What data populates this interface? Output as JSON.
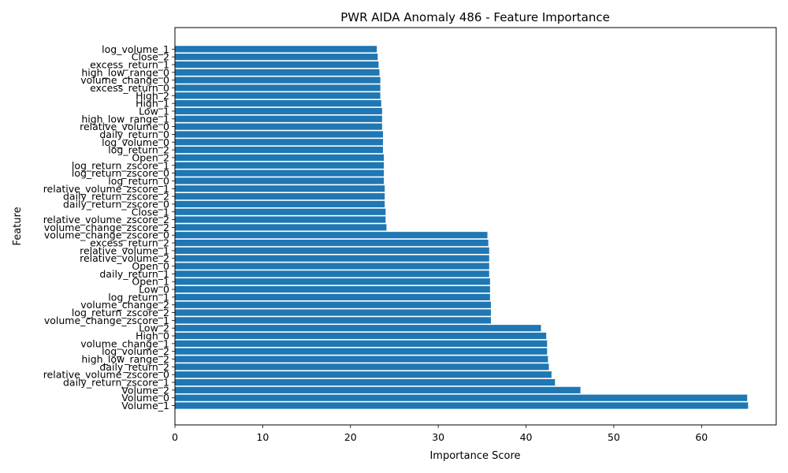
{
  "chart_data": {
    "type": "bar",
    "orientation": "horizontal",
    "title": "PWR AIDA Anomaly 486 - Feature Importance",
    "xlabel": "Importance Score",
    "ylabel": "Feature",
    "xlim": [
      0,
      68.5
    ],
    "xticks": [
      0,
      10,
      20,
      30,
      40,
      50,
      60
    ],
    "bar_color": "#1f77b4",
    "grid": false,
    "categories": [
      "Volume_1",
      "Volume_0",
      "Volume_2",
      "daily_return_zscore_1",
      "relative_volume_zscore_0",
      "daily_return_2",
      "high_low_range_2",
      "log_volume_2",
      "volume_change_1",
      "High_0",
      "Low_2",
      "volume_change_zscore_1",
      "log_return_zscore_2",
      "volume_change_2",
      "log_return_1",
      "Low_0",
      "Open_1",
      "daily_return_1",
      "Open_0",
      "relative_volume_2",
      "relative_volume_1",
      "excess_return_2",
      "volume_change_zscore_0",
      "volume_change_zscore_2",
      "relative_volume_zscore_2",
      "Close_1",
      "daily_return_zscore_0",
      "daily_return_zscore_2",
      "relative_volume_zscore_1",
      "log_return_0",
      "log_return_zscore_0",
      "log_return_zscore_1",
      "Open_2",
      "log_return_2",
      "log_volume_0",
      "daily_return_0",
      "relative_volume_0",
      "high_low_range_1",
      "Low_1",
      "High_1",
      "High_2",
      "excess_return_0",
      "volume_change_0",
      "high_low_range_0",
      "excess_return_1",
      "Close_2",
      "log_volume_1"
    ],
    "values": [
      65.3,
      65.2,
      46.2,
      43.3,
      42.9,
      42.6,
      42.5,
      42.4,
      42.4,
      42.3,
      41.7,
      36.0,
      36.0,
      36.0,
      35.9,
      35.9,
      35.9,
      35.8,
      35.8,
      35.8,
      35.8,
      35.7,
      35.6,
      24.1,
      24.0,
      24.0,
      23.9,
      23.9,
      23.9,
      23.8,
      23.8,
      23.8,
      23.8,
      23.7,
      23.7,
      23.7,
      23.6,
      23.6,
      23.6,
      23.5,
      23.4,
      23.4,
      23.4,
      23.3,
      23.2,
      23.1,
      23.0
    ]
  }
}
